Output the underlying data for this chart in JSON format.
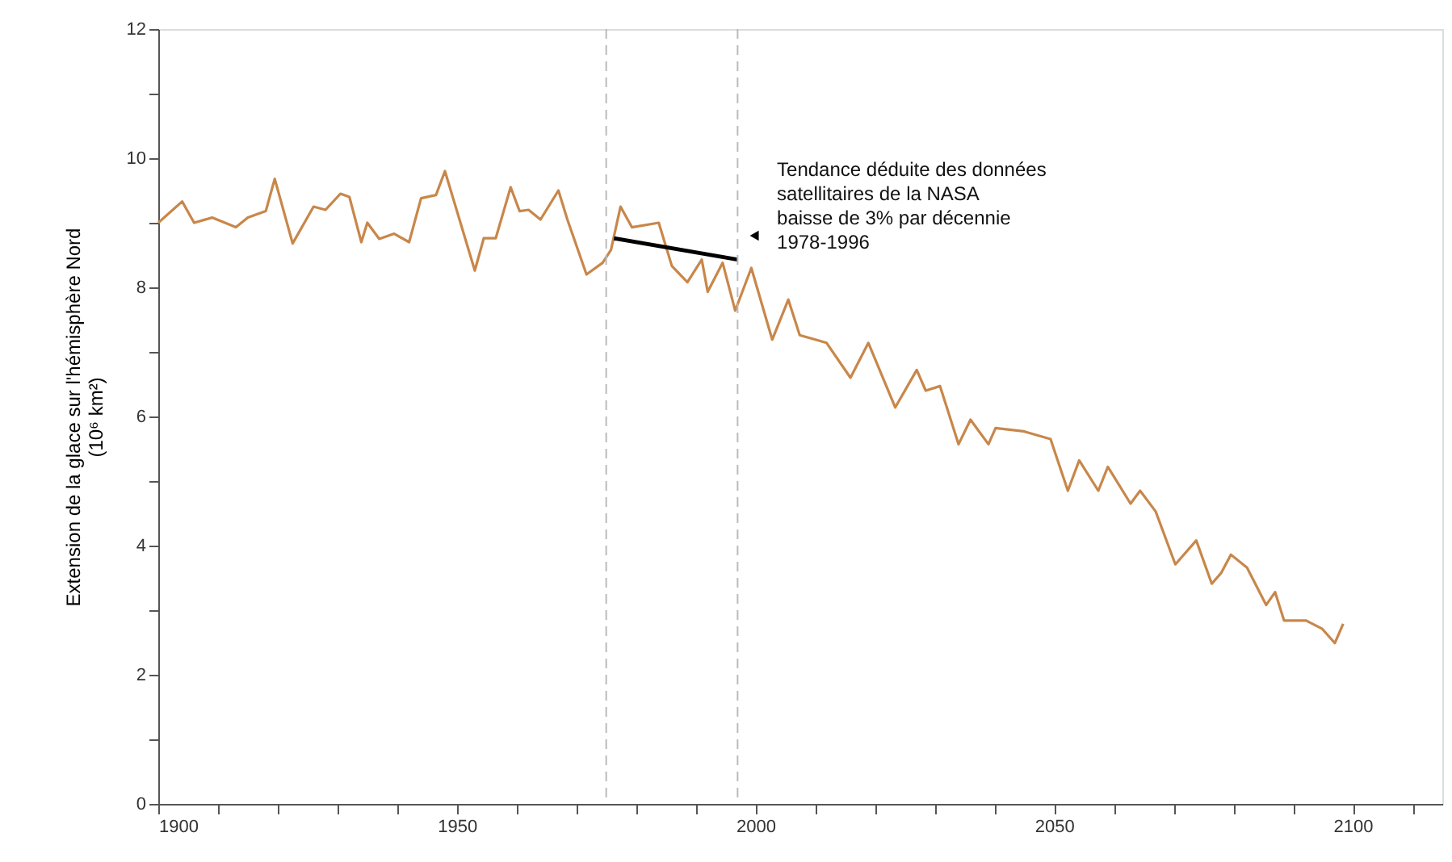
{
  "chart_data": {
    "type": "line",
    "ylabel": "Extension de la glace sur l'hémisphère Nord\n(10⁶ km²)",
    "x": [
      1900,
      1904,
      1906,
      1909,
      1913,
      1915,
      1918,
      1919.5,
      1922.5,
      1926,
      1928,
      1930.5,
      1932,
      1934,
      1935,
      1937,
      1939.5,
      1942,
      1944,
      1946.5,
      1948,
      1953,
      1954.5,
      1956.5,
      1959,
      1960.5,
      1962,
      1964,
      1967,
      1968.5,
      1971.7,
      1974.4,
      1975.8,
      1977.4,
      1979.3,
      1983.8,
      1986,
      1988.6,
      1991,
      1992,
      1994.5,
      1996.6,
      1999.3,
      2002.8,
      2005.5,
      2007.4,
      2011.9,
      2015.9,
      2018.9,
      2023.4,
      2027,
      2028.5,
      2030.9,
      2034,
      2036,
      2039,
      2040.2,
      2044.9,
      2049.4,
      2052.3,
      2054.2,
      2057.4,
      2059,
      2062.8,
      2064.4,
      2067,
      2070.3,
      2073.8,
      2076.4,
      2078,
      2079.6,
      2082.3,
      2085.5,
      2087,
      2088.5,
      2092.2,
      2094.9,
      2097,
      2098.4
    ],
    "series": [
      {
        "type": "line",
        "color": "#c8874a",
        "values": [
          9.0,
          9.33,
          9.0,
          9.08,
          8.93,
          9.08,
          9.18,
          9.68,
          8.68,
          9.25,
          9.2,
          9.45,
          9.4,
          8.7,
          9.0,
          8.75,
          8.83,
          8.7,
          9.38,
          9.43,
          9.8,
          8.26,
          8.76,
          8.76,
          9.55,
          9.18,
          9.2,
          9.05,
          9.5,
          9.05,
          8.2,
          8.38,
          8.58,
          9.25,
          8.93,
          9.0,
          8.33,
          8.08,
          8.43,
          7.93,
          8.38,
          7.64,
          8.3,
          7.19,
          7.81,
          7.26,
          7.14,
          6.6,
          7.14,
          6.14,
          6.72,
          6.4,
          6.47,
          5.57,
          5.95,
          5.57,
          5.82,
          5.77,
          5.65,
          4.85,
          5.32,
          4.85,
          5.22,
          4.65,
          4.85,
          4.53,
          3.71,
          4.08,
          3.41,
          3.58,
          3.86,
          3.66,
          3.08,
          3.28,
          2.84,
          2.84,
          2.71,
          2.49,
          2.79
        ]
      },
      {
        "type": "line",
        "color": "#000000",
        "x": [
          1976.3,
          1997
        ],
        "values": [
          8.76,
          8.43
        ]
      }
    ],
    "xlim": [
      1900,
      2115
    ],
    "xticks": [
      1900,
      {
        "value": 1910,
        "label": null
      },
      {
        "value": 1920,
        "label": null
      },
      {
        "value": 1930,
        "label": null
      },
      {
        "value": 1940,
        "label": null
      },
      1950,
      {
        "value": 1960,
        "label": null
      },
      {
        "value": 1970,
        "label": null
      },
      {
        "value": 1980,
        "label": null
      },
      {
        "value": 1990,
        "label": null
      },
      2000,
      {
        "value": 2010,
        "label": null
      },
      {
        "value": 2020,
        "label": null
      },
      {
        "value": 2030,
        "label": null
      },
      {
        "value": 2040,
        "label": null
      },
      2050,
      {
        "value": 2060,
        "label": null
      },
      {
        "value": 2070,
        "label": null
      },
      {
        "value": 2080,
        "label": null
      },
      {
        "value": 2090,
        "label": null
      },
      2100,
      {
        "value": 2110,
        "label": null
      }
    ],
    "ylim": [
      0,
      12
    ],
    "yticks": [
      0,
      {
        "value": 1,
        "label": null
      },
      2,
      {
        "value": 3,
        "label": null
      },
      4,
      {
        "value": 5,
        "label": null
      },
      6,
      {
        "value": 7,
        "label": null
      },
      8,
      {
        "value": 9,
        "label": null
      },
      10,
      {
        "value": 11,
        "label": null
      },
      12
    ],
    "ref_lines": [
      {
        "axis": "x",
        "value": 1975,
        "color": "#bbbbbb",
        "line_style": "dashed"
      },
      {
        "axis": "x",
        "value": 1997,
        "color": "#bbbbbb",
        "line_style": "dashed"
      }
    ],
    "annotations": [
      {
        "text": "Tendance déduite des données\nsatellitaires de la NASA\nbaisse de 3% par décennie\n1978-1996",
        "x": 1999.8,
        "y": 8.8
      }
    ],
    "grid": false,
    "legend": false,
    "marker": "none",
    "line_style": "solid"
  }
}
